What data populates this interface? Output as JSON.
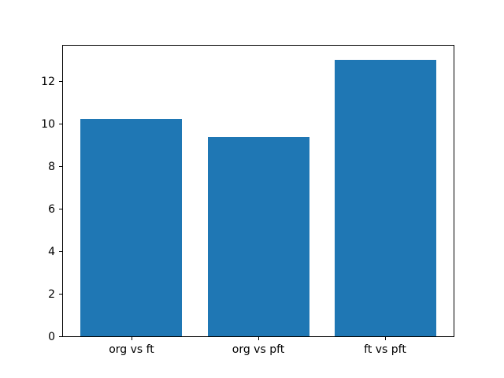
{
  "figure": {
    "background": "#ffffff",
    "spine_color": "#000000",
    "tick_color": "#000000"
  },
  "chart_data": {
    "type": "bar",
    "title": "",
    "xlabel": "",
    "ylabel": "",
    "categories": [
      "org vs ft",
      "org vs pft",
      "ft vs pft"
    ],
    "values": [
      10.2,
      9.35,
      13.0
    ],
    "bar_color": "#1f77b4",
    "bar_width": 0.8,
    "xlim": [
      -0.54,
      2.54
    ],
    "ylim": [
      0,
      13.65
    ],
    "yticks": [
      0,
      2,
      4,
      6,
      8,
      10,
      12
    ],
    "grid": false,
    "legend": null
  }
}
